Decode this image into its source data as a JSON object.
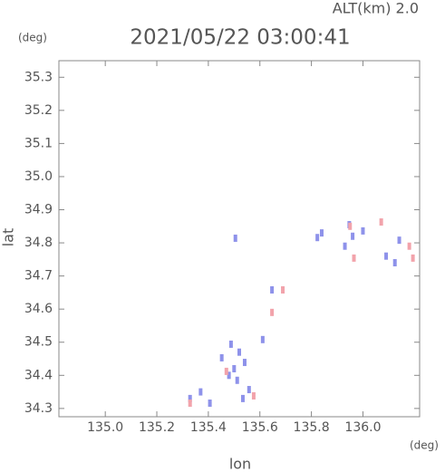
{
  "chart_data": {
    "type": "scatter",
    "title": "2021/05/22 03:00:41",
    "altitude_label": "ALT(km) 2.0",
    "y_unit": "(deg)",
    "x_unit": "(deg)",
    "xlabel": "lon",
    "ylabel": "lat",
    "xlim": [
      134.82,
      136.22
    ],
    "ylim": [
      34.275,
      35.35
    ],
    "xticks": [
      {
        "value": 135.0,
        "label": "135.0"
      },
      135.2,
      135.4,
      135.6,
      135.8,
      {
        "value": 136.0,
        "label": "136.0"
      }
    ],
    "yticks": [
      34.3,
      34.4,
      34.5,
      34.6,
      34.7,
      34.8,
      34.9,
      {
        "value": 35.0,
        "label": "35.0"
      },
      35.1,
      35.2,
      35.3
    ],
    "series": [
      {
        "color": "#8e92ea",
        "x": [
          135.406,
          135.488,
          135.512,
          135.541,
          135.558,
          135.611,
          135.647,
          135.505,
          135.823,
          135.947,
          136.0,
          136.141,
          136.124,
          135.329,
          135.452,
          135.534,
          135.5,
          135.52,
          135.48,
          135.93,
          135.96,
          135.84,
          136.09,
          135.37
        ],
        "y": [
          34.316,
          34.494,
          34.385,
          34.439,
          34.357,
          34.508,
          34.658,
          34.814,
          34.816,
          34.855,
          34.836,
          34.808,
          34.74,
          34.33,
          34.453,
          34.33,
          34.42,
          34.47,
          34.4,
          34.79,
          34.82,
          34.83,
          34.76,
          34.35
        ]
      },
      {
        "color": "#f2a3ab",
        "x": [
          135.647,
          135.965,
          136.194,
          136.071,
          135.689,
          135.576,
          135.329,
          135.47,
          136.18,
          135.95
        ],
        "y": [
          34.59,
          34.754,
          34.754,
          34.863,
          34.658,
          34.338,
          34.316,
          34.412,
          34.79,
          34.85
        ]
      }
    ]
  }
}
